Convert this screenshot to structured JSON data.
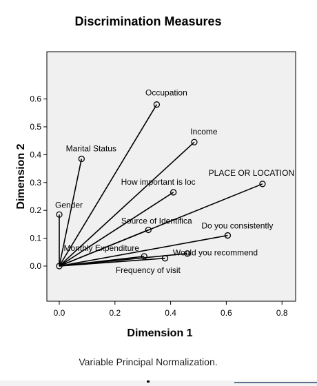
{
  "chart_data": {
    "type": "scatter",
    "title": "Discrimination Measures",
    "xlabel": "Dimension 1",
    "ylabel": "Dimension 2",
    "xlim": [
      -0.07,
      0.85
    ],
    "ylim": [
      -0.13,
      0.7
    ],
    "xticks": [
      "0.0",
      "0.2",
      "0.4",
      "0.6",
      "0.8"
    ],
    "yticks": [
      "0.0",
      "0.1",
      "0.2",
      "0.3",
      "0.4",
      "0.5",
      "0.6"
    ],
    "grid": false,
    "origin": [
      0,
      0
    ],
    "points": [
      {
        "label": "Occupation",
        "x": 0.35,
        "y": 0.58
      },
      {
        "label": "Income",
        "x": 0.485,
        "y": 0.445
      },
      {
        "label": "Marital Status",
        "x": 0.08,
        "y": 0.385
      },
      {
        "label": "PLACE OR LOCATION",
        "x": 0.73,
        "y": 0.295
      },
      {
        "label": "How important is loc",
        "x": 0.41,
        "y": 0.265
      },
      {
        "label": "Gender",
        "x": 0.0,
        "y": 0.185
      },
      {
        "label": "Source of Identifica",
        "x": 0.32,
        "y": 0.13
      },
      {
        "label": "Do you consistently",
        "x": 0.605,
        "y": 0.11
      },
      {
        "label": "Monthly Expenditure",
        "x": 0.305,
        "y": 0.035
      },
      {
        "label": "Would you recommend",
        "x": 0.38,
        "y": 0.028
      },
      {
        "label": "Frequency of visit",
        "x": 0.46,
        "y": 0.045
      }
    ],
    "footnote": "Variable Principal Normalization."
  },
  "colors": {
    "plot_background": "#f0f0f0",
    "axis": "#000000",
    "marker": "#000000"
  }
}
